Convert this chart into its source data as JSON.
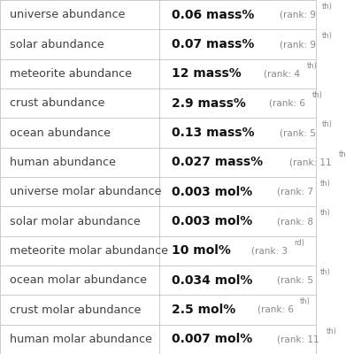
{
  "rows": [
    {
      "label": "universe abundance",
      "value": "0.06 mass%",
      "rank_num": "9",
      "rank_suf": "th"
    },
    {
      "label": "solar abundance",
      "value": "0.07 mass%",
      "rank_num": "9",
      "rank_suf": "th"
    },
    {
      "label": "meteorite abundance",
      "value": "12 mass%",
      "rank_num": "4",
      "rank_suf": "th"
    },
    {
      "label": "crust abundance",
      "value": "2.9 mass%",
      "rank_num": "6",
      "rank_suf": "th"
    },
    {
      "label": "ocean abundance",
      "value": "0.13 mass%",
      "rank_num": "5",
      "rank_suf": "th"
    },
    {
      "label": "human abundance",
      "value": "0.027 mass%",
      "rank_num": "11",
      "rank_suf": "th"
    },
    {
      "label": "universe molar abundance",
      "value": "0.003 mol%",
      "rank_num": "7",
      "rank_suf": "th"
    },
    {
      "label": "solar molar abundance",
      "value": "0.003 mol%",
      "rank_num": "8",
      "rank_suf": "th"
    },
    {
      "label": "meteorite molar abundance",
      "value": "10 mol%",
      "rank_num": "3",
      "rank_suf": "rd"
    },
    {
      "label": "ocean molar abundance",
      "value": "0.034 mol%",
      "rank_num": "5",
      "rank_suf": "th"
    },
    {
      "label": "crust molar abundance",
      "value": "2.5 mol%",
      "rank_num": "6",
      "rank_suf": "th"
    },
    {
      "label": "human molar abundance",
      "value": "0.007 mol%",
      "rank_num": "11",
      "rank_suf": "th"
    }
  ],
  "col_divider": 0.505,
  "bg_color": "#ffffff",
  "label_color": "#404040",
  "value_color": "#111111",
  "rank_color": "#888888",
  "grid_color": "#cccccc",
  "label_fontsize": 9.2,
  "value_fontsize": 10.0,
  "rank_fontsize": 7.5,
  "rank_sup_fontsize": 6.0
}
